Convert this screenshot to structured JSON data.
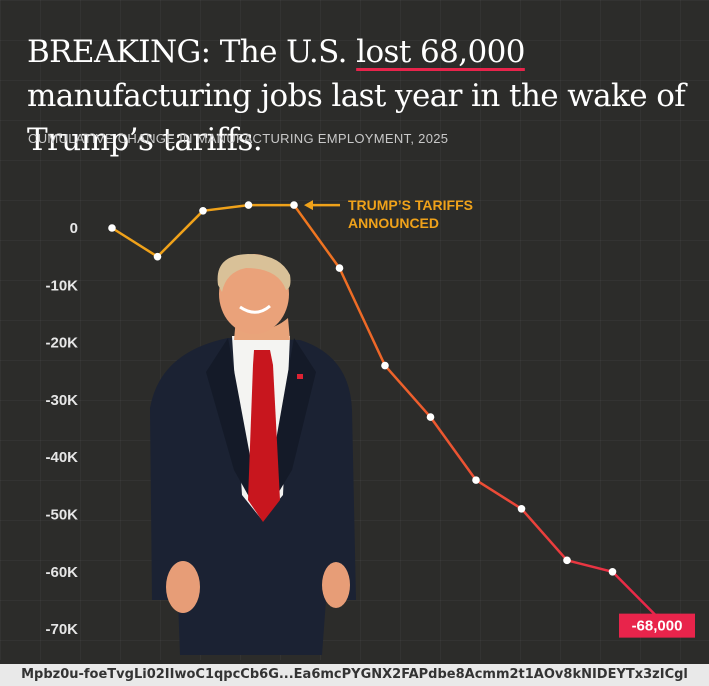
{
  "headline": {
    "prefix": "BREAKING: The U.S. ",
    "highlight": "lost 68,000",
    "suffix": " manufacturing jobs last year in the wake of Trump’s tariffs."
  },
  "footer_url": "Mpbz0u-foeTvgLi02IIwoC1qpcCb6G...Ea6mcPYGNX2FAPdbe8Acmm2t1AOv8kNIDEYTx3zICgl",
  "chart_data": {
    "type": "line",
    "title": "CUMULATIVE CHANGE IN MANUFACTURING EMPLOYMENT, 2025",
    "xlabel": "",
    "ylabel": "",
    "ylim": [
      -70000,
      0
    ],
    "y_ticks": [
      0,
      -10000,
      -20000,
      -30000,
      -40000,
      -50000,
      -60000,
      -70000
    ],
    "y_tick_labels": [
      "0",
      "-10K",
      "-20K",
      "-30K",
      "-40K",
      "-50K",
      "-60K",
      "-70K"
    ],
    "grid": false,
    "series": [
      {
        "x": [
          1,
          2,
          3,
          4,
          5,
          6,
          7,
          8,
          9,
          10,
          11,
          12,
          13
        ],
        "values": [
          0,
          -5000,
          3000,
          4000,
          4000,
          -7000,
          -24000,
          -33000,
          -44000,
          -49000,
          -58000,
          -60000,
          -68000
        ]
      }
    ],
    "annotation": {
      "line1": "TRUMP’S TARIFFS",
      "line2": "ANNOUNCED",
      "point_index": 4
    },
    "final_label": "-68,000",
    "colors": {
      "pre_tariff_line": "#f0a21a",
      "post_line_start": "#f07a1e",
      "post_line_end": "#e8244b",
      "marker": "#ffffff",
      "final_badge": "#e8244b",
      "underline": "#e8244b"
    }
  }
}
